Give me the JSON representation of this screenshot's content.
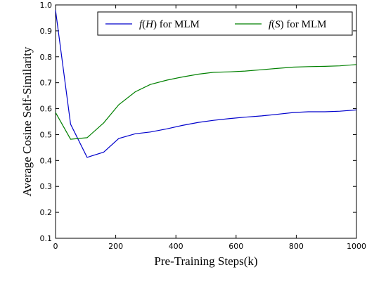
{
  "chart_data": {
    "type": "line",
    "title": "",
    "xlabel": "Pre-Training Steps(k)",
    "ylabel": "Average Cosine Self-Similarity",
    "xlim": [
      0,
      1000
    ],
    "ylim": [
      0.1,
      1.0
    ],
    "xticks": [
      0,
      200,
      400,
      600,
      800,
      1000
    ],
    "yticks": [
      0.1,
      0.2,
      0.3,
      0.4,
      0.5,
      0.6,
      0.7,
      0.8,
      0.9,
      1.0
    ],
    "ytick_labels": [
      "0.1",
      "0.2",
      "0.3",
      "0.4",
      "0.5",
      "0.6",
      "0.7",
      "0.8",
      "0.9",
      "1.0"
    ],
    "grid": false,
    "legend_position": "top",
    "series": [
      {
        "name_prefix": "f",
        "name_arg": "(H)",
        "name_suffix": " for MLM",
        "color": "#0000cc",
        "x": [
          0,
          50,
          105,
          160,
          210,
          265,
          315,
          370,
          420,
          475,
          525,
          580,
          630,
          685,
          735,
          790,
          840,
          895,
          945,
          1000
        ],
        "y": [
          0.98,
          0.54,
          0.412,
          0.432,
          0.485,
          0.503,
          0.51,
          0.522,
          0.535,
          0.547,
          0.555,
          0.562,
          0.567,
          0.572,
          0.578,
          0.585,
          0.588,
          0.588,
          0.59,
          0.595
        ]
      },
      {
        "name_prefix": "f",
        "name_arg": "(S)",
        "name_suffix": " for MLM",
        "color": "#008000",
        "x": [
          0,
          50,
          105,
          160,
          210,
          265,
          315,
          370,
          420,
          475,
          525,
          580,
          630,
          685,
          735,
          790,
          840,
          895,
          945,
          1000
        ],
        "y": [
          0.585,
          0.482,
          0.488,
          0.545,
          0.615,
          0.665,
          0.693,
          0.71,
          0.722,
          0.733,
          0.74,
          0.742,
          0.745,
          0.75,
          0.755,
          0.76,
          0.762,
          0.763,
          0.765,
          0.77
        ]
      }
    ]
  }
}
